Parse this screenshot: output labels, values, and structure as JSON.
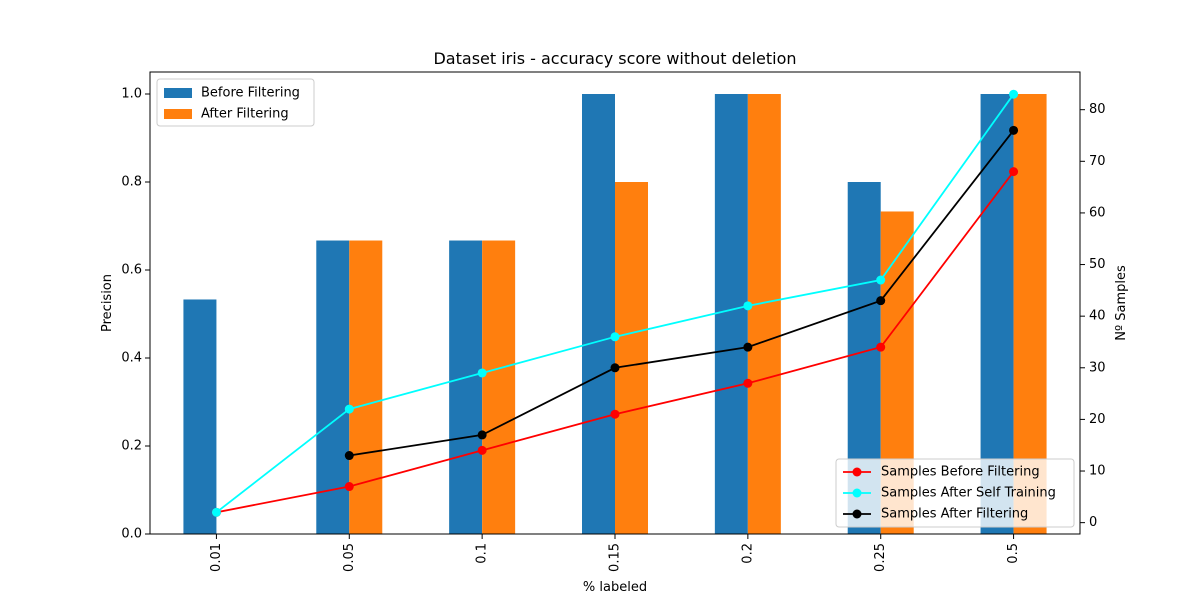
{
  "chart_data": {
    "type": "bar",
    "title": "Dataset iris - accuracy score without deletion",
    "xlabel": "% labeled",
    "ylabel": "Precision",
    "y2label": "Nº Samples",
    "categories": [
      "0.01",
      "0.05",
      "0.1",
      "0.15",
      "0.2",
      "0.25",
      "0.5"
    ],
    "ylim": [
      0,
      1.05
    ],
    "y2lim": [
      -2.2,
      87.3
    ],
    "yticks": [
      "0.0",
      "0.2",
      "0.4",
      "0.6",
      "0.8",
      "1.0"
    ],
    "y2ticks": [
      "0",
      "10",
      "20",
      "30",
      "40",
      "50",
      "60",
      "70",
      "80"
    ],
    "bar_series": [
      {
        "name": "Before Filtering",
        "color": "#1f77b4",
        "values": [
          0.533,
          0.667,
          0.667,
          1.0,
          1.0,
          0.8,
          1.0
        ]
      },
      {
        "name": "After Filtering",
        "color": "#ff7f0e",
        "values": [
          null,
          0.667,
          0.667,
          0.8,
          1.0,
          0.733,
          1.0
        ]
      }
    ],
    "line_series": [
      {
        "name": "Samples Before Filtering",
        "color": "#ff0000",
        "values": [
          2,
          7,
          14,
          21,
          27,
          34,
          68
        ]
      },
      {
        "name": "Samples After Self Training",
        "color": "#00ffff",
        "values": [
          2,
          22,
          29,
          36,
          42,
          47,
          83
        ]
      },
      {
        "name": "Samples After Filtering",
        "color": "#000000",
        "values": [
          null,
          13,
          17,
          30,
          34,
          43,
          76
        ]
      }
    ],
    "legend_bars_position": "upper-left",
    "legend_lines_position": "lower-right",
    "grid": false
  }
}
